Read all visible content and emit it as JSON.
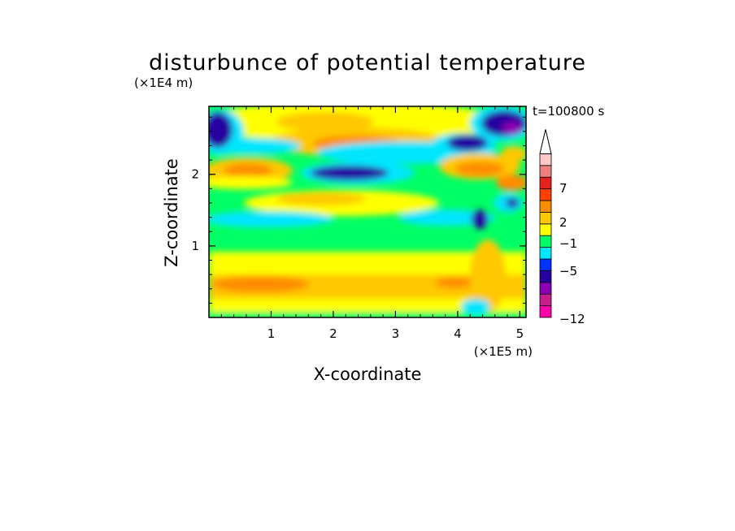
{
  "chart_data": {
    "type": "heatmap",
    "title": "disturbunce of potential temperature",
    "xlabel": "X-coordinate",
    "ylabel": "Z-coordinate",
    "x_scale_label": "(×1E5 m)",
    "y_scale_label": "(×1E4 m)",
    "time_label": "t=100800 s",
    "xlim": [
      0,
      5.1
    ],
    "ylim": [
      0,
      2.95
    ],
    "x_ticks": [
      "1",
      "2",
      "3",
      "4",
      "5"
    ],
    "x_tick_values": [
      1,
      2,
      3,
      4,
      5
    ],
    "y_ticks": [
      "1",
      "2"
    ],
    "y_tick_values": [
      1,
      2
    ],
    "colorbar": {
      "labels": [
        "7",
        "2",
        "−1",
        "−5",
        "−12"
      ],
      "label_values": [
        7,
        2,
        -1,
        -5,
        -12
      ],
      "colors": [
        "#ff00aa",
        "#c81e8c",
        "#8c00b4",
        "#2800a0",
        "#0032ff",
        "#00e6ff",
        "#00ff64",
        "#ffff00",
        "#ffc800",
        "#ff8c00",
        "#ff4000",
        "#e6221e",
        "#f08080",
        "#ffc8c8"
      ],
      "extend": "max"
    },
    "features": [
      {
        "x": 0.6,
        "z": 2.0,
        "value": 4
      },
      {
        "x": 1.9,
        "z": 1.65,
        "value": 3
      },
      {
        "x": 2.3,
        "z": 2.45,
        "value": 4
      },
      {
        "x": 2.2,
        "z": 2.0,
        "value": -5
      },
      {
        "x": 4.4,
        "z": 2.45,
        "value": -5
      },
      {
        "x": 4.9,
        "z": 2.75,
        "value": -6
      },
      {
        "x": 0.1,
        "z": 2.6,
        "value": -5
      },
      {
        "x": 4.5,
        "z": 2.1,
        "value": 4
      },
      {
        "x": 1.0,
        "z": 0.4,
        "value": 3
      }
    ]
  }
}
